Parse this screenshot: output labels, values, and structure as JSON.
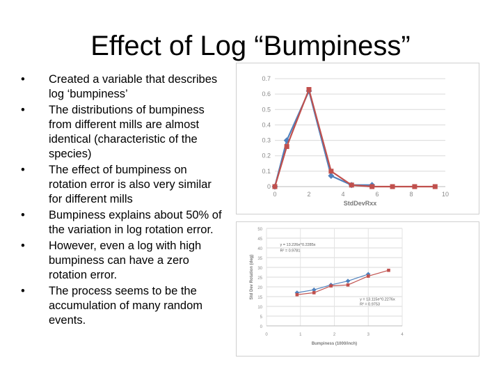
{
  "slide": {
    "title": "Effect of Log “Bumpiness”",
    "bullet_marker": "•",
    "bullets": [
      "Created a variable that describes log ‘bumpiness’",
      "The distributions of bumpiness from different mills are almost identical (characteristic of the species)",
      "The effect of bumpiness on rotation error is also very similar for different mills",
      "Bumpiness explains about 50% of the variation in log rotation error.",
      "However, even a log with high bumpiness can have a zero rotation error.",
      "The process seems to be the accumulation of many random events."
    ]
  },
  "chart_data": [
    {
      "type": "line",
      "xlabel": "StdDevRxx",
      "ylabel": "",
      "xlim": [
        0,
        10
      ],
      "ylim": [
        0,
        0.7
      ],
      "x_ticks": [
        0,
        2,
        4,
        6,
        8,
        10
      ],
      "y_ticks": [
        0,
        0.1,
        0.2,
        0.3,
        0.4,
        0.5,
        0.6,
        0.7
      ],
      "grid": true,
      "series": [
        {
          "color": "#4f81bd",
          "marker": "diamond",
          "x": [
            0,
            0.7,
            2.0,
            3.3,
            4.5,
            5.7
          ],
          "y": [
            0.0,
            0.3,
            0.62,
            0.07,
            0.01,
            0.01
          ]
        },
        {
          "color": "#c0504d",
          "marker": "square",
          "x": [
            0,
            0.7,
            2.0,
            3.3,
            4.5,
            5.7,
            6.9,
            8.2,
            9.4
          ],
          "y": [
            0.0,
            0.26,
            0.63,
            0.1,
            0.01,
            0.0,
            0.0,
            0.0,
            0.0
          ]
        }
      ]
    },
    {
      "type": "scatter",
      "xlabel": "Bumpiness (1000/inch)",
      "ylabel": "Std Dev Rotation (deg)",
      "xlim": [
        0,
        4
      ],
      "ylim": [
        0,
        50
      ],
      "x_ticks": [
        0,
        1,
        2,
        3,
        4
      ],
      "y_ticks": [
        0,
        5,
        10,
        15,
        20,
        25,
        30,
        35,
        40,
        45,
        50
      ],
      "grid": true,
      "annotations": [
        {
          "text": "y = 13.226e^0.2285x",
          "x": 0.4,
          "y": 41
        },
        {
          "text": "R² = 0.9781",
          "x": 0.4,
          "y": 38
        },
        {
          "text": "y = 13.115e^0.2276x",
          "x": 2.75,
          "y": 13
        },
        {
          "text": "R² = 0.9753",
          "x": 2.75,
          "y": 10.5
        }
      ],
      "series": [
        {
          "color": "#4f81bd",
          "marker": "diamond",
          "x": [
            0.9,
            1.4,
            1.9,
            2.4,
            3.0
          ],
          "y": [
            17,
            18.5,
            21,
            23,
            26.5
          ]
        },
        {
          "color": "#c0504d",
          "marker": "square",
          "x": [
            0.9,
            1.4,
            1.9,
            2.4,
            3.0,
            3.6
          ],
          "y": [
            16,
            17,
            20.5,
            21,
            25.5,
            28.5
          ]
        }
      ]
    }
  ]
}
